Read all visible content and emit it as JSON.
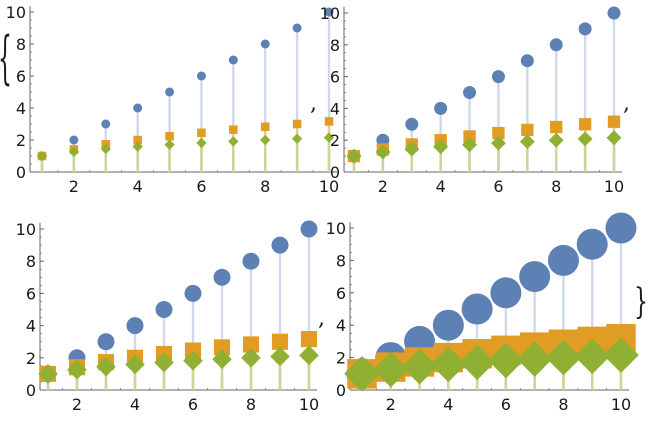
{
  "list": {
    "open_brace": "{",
    "close_brace": "}",
    "separator": ","
  },
  "colors": {
    "series1": "#5e81b5",
    "series2": "#e19c24",
    "series3": "#8fb032",
    "stem1": "#cfd9ea",
    "stem2": "#e7cc96",
    "stem3": "#cdd39a",
    "axis": "#666666"
  },
  "chart_data": [
    {
      "type": "scatter",
      "style": "stem-plot",
      "marker_size": "small",
      "x": [
        1,
        2,
        3,
        4,
        5,
        6,
        7,
        8,
        9,
        10
      ],
      "series": [
        {
          "values": [
            1,
            2,
            3,
            4,
            5,
            6,
            7,
            8,
            9,
            10
          ],
          "marker": "circle",
          "color": "#5e81b5"
        },
        {
          "values": [
            1,
            1.414,
            1.732,
            2,
            2.236,
            2.449,
            2.646,
            2.828,
            3,
            3.162
          ],
          "marker": "square",
          "color": "#e19c24"
        },
        {
          "values": [
            1,
            1.26,
            1.442,
            1.587,
            1.71,
            1.817,
            1.913,
            2,
            2.08,
            2.154
          ],
          "marker": "diamond",
          "color": "#8fb032"
        }
      ],
      "xticks": [
        "2",
        "4",
        "6",
        "8",
        "10"
      ],
      "yticks": [
        "0",
        "2",
        "4",
        "6",
        "8",
        "10"
      ],
      "xlim": [
        1,
        10
      ],
      "ylim": [
        0,
        10
      ],
      "title": "",
      "xlabel": "",
      "ylabel": ""
    },
    {
      "type": "scatter",
      "style": "stem-plot",
      "marker_size": "medium",
      "x": [
        1,
        2,
        3,
        4,
        5,
        6,
        7,
        8,
        9,
        10
      ],
      "series": [
        {
          "values": [
            1,
            2,
            3,
            4,
            5,
            6,
            7,
            8,
            9,
            10
          ],
          "marker": "circle",
          "color": "#5e81b5"
        },
        {
          "values": [
            1,
            1.414,
            1.732,
            2,
            2.236,
            2.449,
            2.646,
            2.828,
            3,
            3.162
          ],
          "marker": "square",
          "color": "#e19c24"
        },
        {
          "values": [
            1,
            1.26,
            1.442,
            1.587,
            1.71,
            1.817,
            1.913,
            2,
            2.08,
            2.154
          ],
          "marker": "diamond",
          "color": "#8fb032"
        }
      ],
      "xticks": [
        "2",
        "4",
        "6",
        "8",
        "10"
      ],
      "yticks": [
        "0",
        "2",
        "4",
        "6",
        "8",
        "10"
      ],
      "xlim": [
        1,
        10
      ],
      "ylim": [
        0,
        10
      ],
      "title": "",
      "xlabel": "",
      "ylabel": ""
    },
    {
      "type": "scatter",
      "style": "stem-plot",
      "marker_size": "large",
      "x": [
        1,
        2,
        3,
        4,
        5,
        6,
        7,
        8,
        9,
        10
      ],
      "series": [
        {
          "values": [
            1,
            2,
            3,
            4,
            5,
            6,
            7,
            8,
            9,
            10
          ],
          "marker": "circle",
          "color": "#5e81b5"
        },
        {
          "values": [
            1,
            1.414,
            1.732,
            2,
            2.236,
            2.449,
            2.646,
            2.828,
            3,
            3.162
          ],
          "marker": "square",
          "color": "#e19c24"
        },
        {
          "values": [
            1,
            1.26,
            1.442,
            1.587,
            1.71,
            1.817,
            1.913,
            2,
            2.08,
            2.154
          ],
          "marker": "diamond",
          "color": "#8fb032"
        }
      ],
      "xticks": [
        "2",
        "4",
        "6",
        "8",
        "10"
      ],
      "yticks": [
        "0",
        "2",
        "4",
        "6",
        "8",
        "10"
      ],
      "xlim": [
        1,
        10
      ],
      "ylim": [
        0,
        10
      ],
      "title": "",
      "xlabel": "",
      "ylabel": ""
    },
    {
      "type": "scatter",
      "style": "stem-plot",
      "marker_size": "huge",
      "x": [
        1,
        2,
        3,
        4,
        5,
        6,
        7,
        8,
        9,
        10
      ],
      "series": [
        {
          "values": [
            1,
            2,
            3,
            4,
            5,
            6,
            7,
            8,
            9,
            10
          ],
          "marker": "circle",
          "color": "#5e81b5"
        },
        {
          "values": [
            1,
            1.414,
            1.732,
            2,
            2.236,
            2.449,
            2.646,
            2.828,
            3,
            3.162
          ],
          "marker": "square",
          "color": "#e19c24"
        },
        {
          "values": [
            1,
            1.26,
            1.442,
            1.587,
            1.71,
            1.817,
            1.913,
            2,
            2.08,
            2.154
          ],
          "marker": "diamond",
          "color": "#8fb032"
        }
      ],
      "xticks": [
        "2",
        "4",
        "6",
        "8",
        "10"
      ],
      "yticks": [
        "0",
        "2",
        "4",
        "6",
        "8",
        "10"
      ],
      "xlim": [
        1,
        10
      ],
      "ylim": [
        0,
        10
      ],
      "title": "",
      "xlabel": "",
      "ylabel": ""
    }
  ]
}
